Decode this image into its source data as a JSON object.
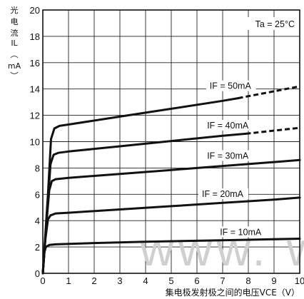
{
  "chart_data": {
    "type": "line",
    "ylabel_chars": [
      "光",
      "电",
      "流",
      "IL",
      "︵",
      "mA",
      "︶"
    ],
    "xlabel": "集电极发射极之间的电压VCE（V）",
    "annotation": "Ta = 25°C",
    "watermark": "www. w",
    "xlim": [
      0,
      10
    ],
    "ylim": [
      0,
      20
    ],
    "xticks": [
      "0",
      "1",
      "2",
      "3",
      "4",
      "5",
      "6",
      "7",
      "8",
      "9",
      "10"
    ],
    "yticks": [
      "0",
      "2",
      "4",
      "6",
      "8",
      "10",
      "12",
      "14",
      "16",
      "18",
      "20"
    ],
    "grid": true,
    "series": [
      {
        "name": "IF = 10mA",
        "points": [
          [
            0,
            0
          ],
          [
            0.06,
            1.6
          ],
          [
            0.12,
            2.0
          ],
          [
            0.25,
            2.15
          ],
          [
            0.5,
            2.2
          ],
          [
            2,
            2.3
          ],
          [
            4,
            2.4
          ],
          [
            6,
            2.47
          ],
          [
            8,
            2.55
          ],
          [
            10,
            2.63
          ]
        ],
        "dashed_from": null,
        "label_at": [
          7.7,
          2.9
        ]
      },
      {
        "name": "IF = 20mA",
        "points": [
          [
            0,
            0
          ],
          [
            0.1,
            2.6
          ],
          [
            0.2,
            4.1
          ],
          [
            0.3,
            4.4
          ],
          [
            0.5,
            4.55
          ],
          [
            1,
            4.6
          ],
          [
            3,
            4.85
          ],
          [
            5,
            5.1
          ],
          [
            7,
            5.35
          ],
          [
            9,
            5.6
          ],
          [
            10,
            5.75
          ]
        ],
        "dashed_from": null,
        "label_at": [
          7.0,
          5.8
        ]
      },
      {
        "name": "IF = 30mA",
        "points": [
          [
            0,
            0
          ],
          [
            0.15,
            4
          ],
          [
            0.25,
            6.3
          ],
          [
            0.35,
            7.0
          ],
          [
            0.5,
            7.15
          ],
          [
            1,
            7.25
          ],
          [
            3,
            7.55
          ],
          [
            5,
            7.85
          ],
          [
            7,
            8.15
          ],
          [
            9,
            8.45
          ],
          [
            10,
            8.6
          ]
        ],
        "dashed_from": null,
        "label_at": [
          7.2,
          8.7
        ]
      },
      {
        "name": "IF = 40mA",
        "points": [
          [
            0,
            0
          ],
          [
            0.18,
            5
          ],
          [
            0.3,
            8.3
          ],
          [
            0.42,
            9.0
          ],
          [
            0.6,
            9.15
          ],
          [
            1,
            9.25
          ],
          [
            3,
            9.65
          ],
          [
            5,
            10.05
          ],
          [
            7,
            10.45
          ],
          [
            7.9,
            10.6
          ],
          [
            10,
            11.05
          ]
        ],
        "dashed_from": 7.9,
        "label_at": [
          7.2,
          11.0
        ]
      },
      {
        "name": "IF = 50mA",
        "points": [
          [
            0,
            0
          ],
          [
            0.2,
            6
          ],
          [
            0.32,
            10.2
          ],
          [
            0.45,
            11.0
          ],
          [
            0.65,
            11.2
          ],
          [
            1,
            11.3
          ],
          [
            3,
            11.9
          ],
          [
            5,
            12.5
          ],
          [
            7,
            13.1
          ],
          [
            7.6,
            13.3
          ],
          [
            10,
            14.2
          ]
        ],
        "dashed_from": 7.6,
        "label_at": [
          7.3,
          14.0
        ]
      }
    ]
  }
}
